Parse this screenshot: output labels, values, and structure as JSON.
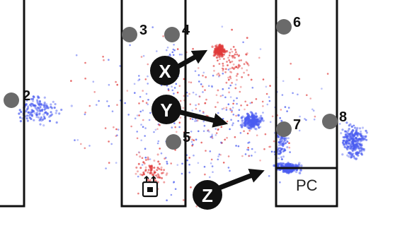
{
  "colors": {
    "wall": "#111111",
    "blue_dot": "#4a5cf0",
    "red_dot": "#e03a3a",
    "marker": "#6a6a6a",
    "callout": "#111111"
  },
  "markers": [
    {
      "id": "2",
      "label": "2"
    },
    {
      "id": "3",
      "label": "3"
    },
    {
      "id": "4",
      "label": "4"
    },
    {
      "id": "5",
      "label": "5"
    },
    {
      "id": "6",
      "label": "6"
    },
    {
      "id": "7",
      "label": "7"
    },
    {
      "id": "8",
      "label": "8"
    }
  ],
  "callouts": [
    {
      "id": "x",
      "label": "X"
    },
    {
      "id": "y",
      "label": "Y"
    },
    {
      "id": "z",
      "label": "Z"
    }
  ],
  "pc_label": "PC",
  "icons": {
    "device": "power-outlet-icon"
  }
}
